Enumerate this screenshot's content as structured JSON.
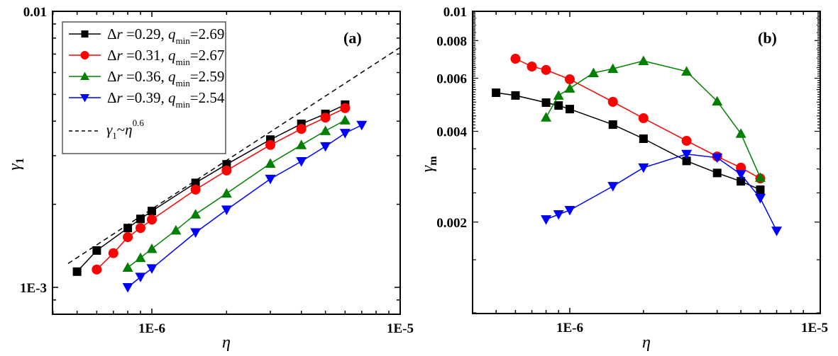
{
  "chart_data": [
    {
      "panel": "a",
      "type": "line",
      "title": "",
      "panel_label": "(a)",
      "xlabel": "η",
      "ylabel": "γ",
      "ylabel_sub": "1",
      "xscale": "log",
      "yscale": "log",
      "xlim": [
        4e-07,
        1e-05
      ],
      "ylim": [
        0.0008,
        0.01
      ],
      "x_ticks": [
        {
          "value": 1e-06,
          "label": "1E-6"
        },
        {
          "value": 1e-05,
          "label": "1E-5"
        }
      ],
      "y_ticks": [
        {
          "value": 0.001,
          "label": "1E-3"
        },
        {
          "value": 0.01,
          "label": "0.01"
        }
      ],
      "grid": false,
      "legend_position": "top-left",
      "series": [
        {
          "name": "Δr=0.29, q_min=2.69",
          "color": "#000000",
          "marker": "square",
          "x": [
            5e-07,
            6e-07,
            8e-07,
            9e-07,
            1e-06,
            1.5e-06,
            2e-06,
            3e-06,
            4e-06,
            5e-06,
            6e-06
          ],
          "y": [
            0.00114,
            0.00136,
            0.00164,
            0.00177,
            0.00189,
            0.00239,
            0.00279,
            0.00343,
            0.00391,
            0.00425,
            0.00459
          ]
        },
        {
          "name": "Δr=0.31, q_min=2.67",
          "color": "#ff0000",
          "marker": "circle",
          "x": [
            6e-07,
            7e-07,
            8e-07,
            9e-07,
            1e-06,
            1.5e-06,
            2e-06,
            3e-06,
            4e-06,
            5e-06,
            6e-06
          ],
          "y": [
            0.00116,
            0.00133,
            0.00152,
            0.00164,
            0.00176,
            0.00226,
            0.00265,
            0.00328,
            0.00375,
            0.00412,
            0.00446
          ]
        },
        {
          "name": "Δr=0.36, q_min=2.59",
          "color": "#008000",
          "marker": "triangle-up",
          "x": [
            8e-07,
            9e-07,
            1e-06,
            1.25e-06,
            1.5e-06,
            2e-06,
            3e-06,
            4e-06,
            5e-06,
            6e-06
          ],
          "y": [
            0.00118,
            0.00128,
            0.00138,
            0.00161,
            0.00184,
            0.00219,
            0.00281,
            0.00328,
            0.00369,
            0.00403
          ]
        },
        {
          "name": "Δr=0.39, q_min=2.54",
          "color": "#0000ff",
          "marker": "triangle-down",
          "x": [
            8e-07,
            9e-07,
            1e-06,
            1.5e-06,
            2e-06,
            3e-06,
            4e-06,
            5e-06,
            6e-06,
            7e-06
          ],
          "y": [
            0.001,
            0.00109,
            0.00117,
            0.00158,
            0.00191,
            0.00247,
            0.00286,
            0.00324,
            0.00362,
            0.00387
          ]
        }
      ],
      "reference_line": {
        "name": "γ1 ~ η^0.6",
        "exponent": 0.6,
        "x": [
          4.6e-07,
          1e-05
        ],
        "y": [
          0.00122,
          0.0074
        ],
        "style": "dashed",
        "color": "#000000"
      },
      "legend": [
        {
          "delta": "Δ",
          "r": "r",
          "dr_value": " =0.29, ",
          "q": "q",
          "sub": "min",
          "q_value": "=2.69"
        },
        {
          "delta": "Δ",
          "r": "r",
          "dr_value": " =0.31, ",
          "q": "q",
          "sub": "min",
          "q_value": "=2.67"
        },
        {
          "delta": "Δ",
          "r": "r",
          "dr_value": " =0.36, ",
          "q": "q",
          "sub": "min",
          "q_value": "=2.59"
        },
        {
          "delta": "Δ",
          "r": "r",
          "dr_value": " =0.39, ",
          "q": "q",
          "sub": "min",
          "q_value": "=2.54"
        }
      ],
      "legend_ref": {
        "gamma": "γ",
        "sub": "1",
        "tilde": "~",
        "eta": "η",
        "sup": "0.6"
      }
    },
    {
      "panel": "b",
      "type": "line",
      "title": "",
      "panel_label": "(b)",
      "xlabel": "η",
      "ylabel": "γ",
      "ylabel_sub": "m",
      "xscale": "log",
      "yscale": "log",
      "xlim": [
        4e-07,
        1e-05
      ],
      "ylim": [
        0.001,
        0.01
      ],
      "x_ticks": [
        {
          "value": 1e-06,
          "label": "1E-6"
        },
        {
          "value": 1e-05,
          "label": "1E-5"
        }
      ],
      "y_ticks": [
        {
          "value": 0.002,
          "label": "0.002"
        },
        {
          "value": 0.004,
          "label": "0.004"
        },
        {
          "value": 0.006,
          "label": "0.006"
        },
        {
          "value": 0.008,
          "label": "0.008"
        },
        {
          "value": 0.01,
          "label": "0.01"
        }
      ],
      "grid": false,
      "series": [
        {
          "name": "Δr=0.29, q_min=2.69",
          "color": "#000000",
          "marker": "square",
          "x": [
            5e-07,
            6e-07,
            8e-07,
            9e-07,
            1e-06,
            1.5e-06,
            2e-06,
            3e-06,
            4e-06,
            5e-06,
            6e-06
          ],
          "y": [
            0.00537,
            0.00526,
            0.00498,
            0.00487,
            0.00474,
            0.00421,
            0.00378,
            0.00319,
            0.00291,
            0.00273,
            0.00256
          ]
        },
        {
          "name": "Δr=0.31, q_min=2.67",
          "color": "#ff0000",
          "marker": "circle",
          "x": [
            6e-07,
            7e-07,
            8e-07,
            1e-06,
            1.5e-06,
            2e-06,
            3e-06,
            4e-06,
            5e-06,
            6e-06
          ],
          "y": [
            0.00696,
            0.00656,
            0.00639,
            0.00595,
            0.00501,
            0.00442,
            0.00372,
            0.0033,
            0.00303,
            0.00279
          ]
        },
        {
          "name": "Δr=0.36, q_min=2.59",
          "color": "#008000",
          "marker": "triangle-up",
          "x": [
            8e-07,
            9e-07,
            1e-06,
            1.25e-06,
            1.5e-06,
            2e-06,
            3e-06,
            4e-06,
            5e-06,
            6e-06
          ],
          "y": [
            0.00445,
            0.00526,
            0.00555,
            0.00625,
            0.00645,
            0.00685,
            0.00632,
            0.00503,
            0.00393,
            0.00281
          ]
        },
        {
          "name": "Δr=0.39, q_min=2.54",
          "color": "#0000ff",
          "marker": "triangle-down",
          "x": [
            8e-07,
            9e-07,
            1e-06,
            1.5e-06,
            2e-06,
            3e-06,
            4e-06,
            5e-06,
            6e-06,
            7e-06
          ],
          "y": [
            0.00204,
            0.00212,
            0.00219,
            0.00263,
            0.00303,
            0.00336,
            0.00327,
            0.00288,
            0.0024,
            0.00187
          ]
        }
      ]
    }
  ]
}
